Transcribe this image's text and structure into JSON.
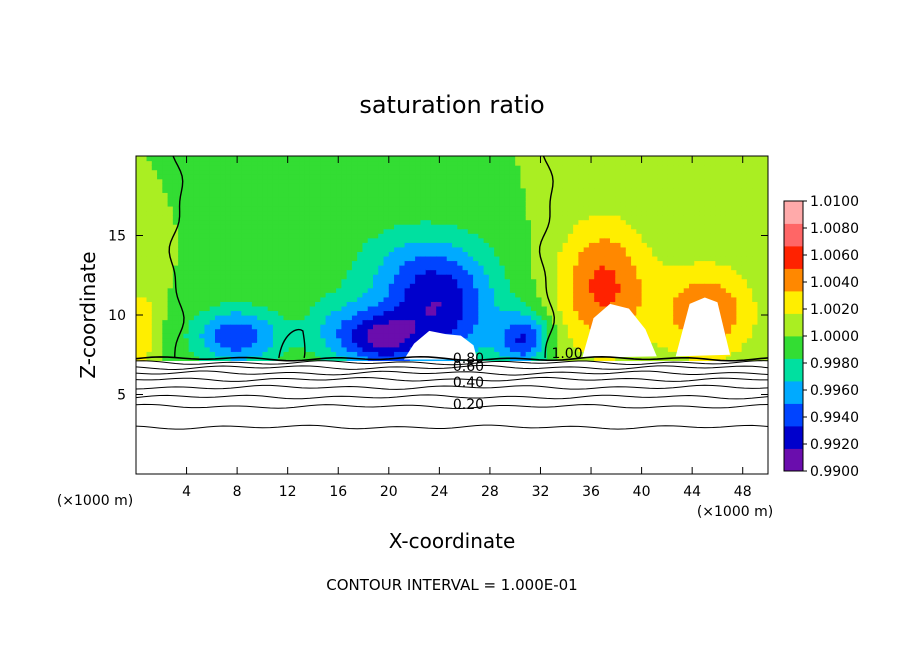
{
  "chart_data": {
    "type": "heatmap",
    "title": "saturation ratio",
    "xlabel": "X-coordinate",
    "ylabel": "Z-coordinate",
    "x_unit_label": "(×1000 m)",
    "z_unit_label": "(×1000 m)",
    "footer": "CONTOUR INTERVAL = 1.000E-01",
    "xlim": [
      0,
      50
    ],
    "ylim": [
      0,
      20
    ],
    "x_ticks": [
      4,
      8,
      12,
      16,
      20,
      24,
      28,
      32,
      36,
      40,
      44,
      48
    ],
    "x_tick_labels": [
      "4",
      "8",
      "12",
      "16",
      "20",
      "24",
      "28",
      "32",
      "36",
      "40",
      "44",
      "48"
    ],
    "y_ticks": [
      5,
      10,
      15
    ],
    "y_tick_labels": [
      "5",
      "10",
      "15"
    ],
    "colorbar": {
      "levels": [
        0.99,
        0.992,
        0.994,
        0.996,
        0.998,
        1.0,
        1.002,
        1.004,
        1.006,
        1.008,
        1.01
      ],
      "labels": [
        "0.9900",
        "0.9920",
        "0.9940",
        "0.9960",
        "0.9980",
        "1.0000",
        "1.0020",
        "1.0040",
        "1.0060",
        "1.0080",
        "1.0100"
      ],
      "colors": [
        "#6a0dad",
        "#0000cc",
        "#0044ff",
        "#00aaff",
        "#00e0a0",
        "#33dd33",
        "#aaee22",
        "#ffee00",
        "#ff8800",
        "#ff2200",
        "#ff6666",
        "#ffaaaa"
      ]
    },
    "contour_labels": [
      {
        "text": "0.80",
        "x": 26.3,
        "z": 7.3
      },
      {
        "text": "0.60",
        "x": 26.3,
        "z": 6.8
      },
      {
        "text": "0.40",
        "x": 26.3,
        "z": 5.8
      },
      {
        "text": "0.20",
        "x": 26.3,
        "z": 4.4
      },
      {
        "text": "1.00",
        "x": 34.1,
        "z": 7.6
      }
    ],
    "lower_contour_lines": [
      {
        "z": 7.25
      },
      {
        "z": 7.0
      },
      {
        "z": 6.7
      },
      {
        "z": 6.35
      },
      {
        "z": 5.95
      },
      {
        "z": 5.45
      },
      {
        "z": 4.85
      },
      {
        "z": 4.25
      },
      {
        "z": 2.95
      }
    ],
    "field_features": [
      {
        "x": 24.0,
        "z": 10.2,
        "sx": 3.2,
        "sz": 2.6,
        "value": 0.9915
      },
      {
        "x": 19.5,
        "z": 8.5,
        "sx": 2.0,
        "sz": 1.2,
        "value": 0.9925
      },
      {
        "x": 8.0,
        "z": 8.7,
        "sx": 2.5,
        "sz": 1.3,
        "value": 0.9925
      },
      {
        "x": 30.7,
        "z": 8.5,
        "sx": 1.4,
        "sz": 1.2,
        "value": 0.9925
      },
      {
        "x": 16.0,
        "z": 9.0,
        "sx": 2.0,
        "sz": 1.5,
        "value": 0.996
      },
      {
        "x": 22.0,
        "z": 13.0,
        "sx": 4.2,
        "sz": 2.2,
        "value": 0.997
      },
      {
        "x": 12.4,
        "z": 8.3,
        "sx": 1.0,
        "sz": 1.0,
        "value": 1.0
      },
      {
        "x": 37.0,
        "z": 11.8,
        "sx": 2.6,
        "sz": 3.0,
        "value": 1.0065
      },
      {
        "x": 45.2,
        "z": 10.2,
        "sx": 2.6,
        "sz": 2.1,
        "value": 1.006
      },
      {
        "x": 0.4,
        "z": 9.2,
        "sx": 0.9,
        "sz": 1.8,
        "value": 1.004
      }
    ],
    "white_regions": [
      {
        "x": [
          21.2,
          22.0,
          23.2,
          24.5,
          25.7,
          26.7,
          27.0
        ],
        "z": [
          7.2,
          8.2,
          9.0,
          8.8,
          8.7,
          8.1,
          7.2
        ]
      },
      {
        "x": [
          35.3,
          36.2,
          37.5,
          39.0,
          40.3,
          41.2
        ],
        "z": [
          7.3,
          9.8,
          10.7,
          10.4,
          9.1,
          7.4
        ]
      },
      {
        "x": [
          42.7,
          43.8,
          45.0,
          46.0,
          47.0
        ],
        "z": [
          7.4,
          10.7,
          11.1,
          10.8,
          7.5
        ]
      }
    ]
  }
}
